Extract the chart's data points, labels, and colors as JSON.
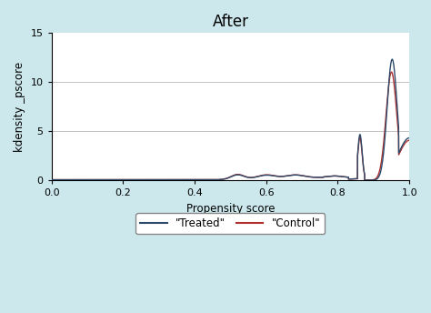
{
  "title": "After",
  "xlabel": "Propensity score",
  "ylabel": "kdensity _pscore",
  "xlim": [
    0,
    1.0
  ],
  "ylim": [
    0,
    15
  ],
  "yticks": [
    0,
    5,
    10,
    15
  ],
  "xticks": [
    0,
    0.2,
    0.4,
    0.6,
    0.8,
    1.0
  ],
  "figure_bg_color": "#cce8ed",
  "plot_bg_color": "#ffffff",
  "treated_color": "#2d4a6b",
  "control_color": "#b03030",
  "legend_labels": [
    "\"Treated\"",
    "\"Control\""
  ],
  "title_fontsize": 12,
  "label_fontsize": 8.5,
  "tick_fontsize": 8
}
